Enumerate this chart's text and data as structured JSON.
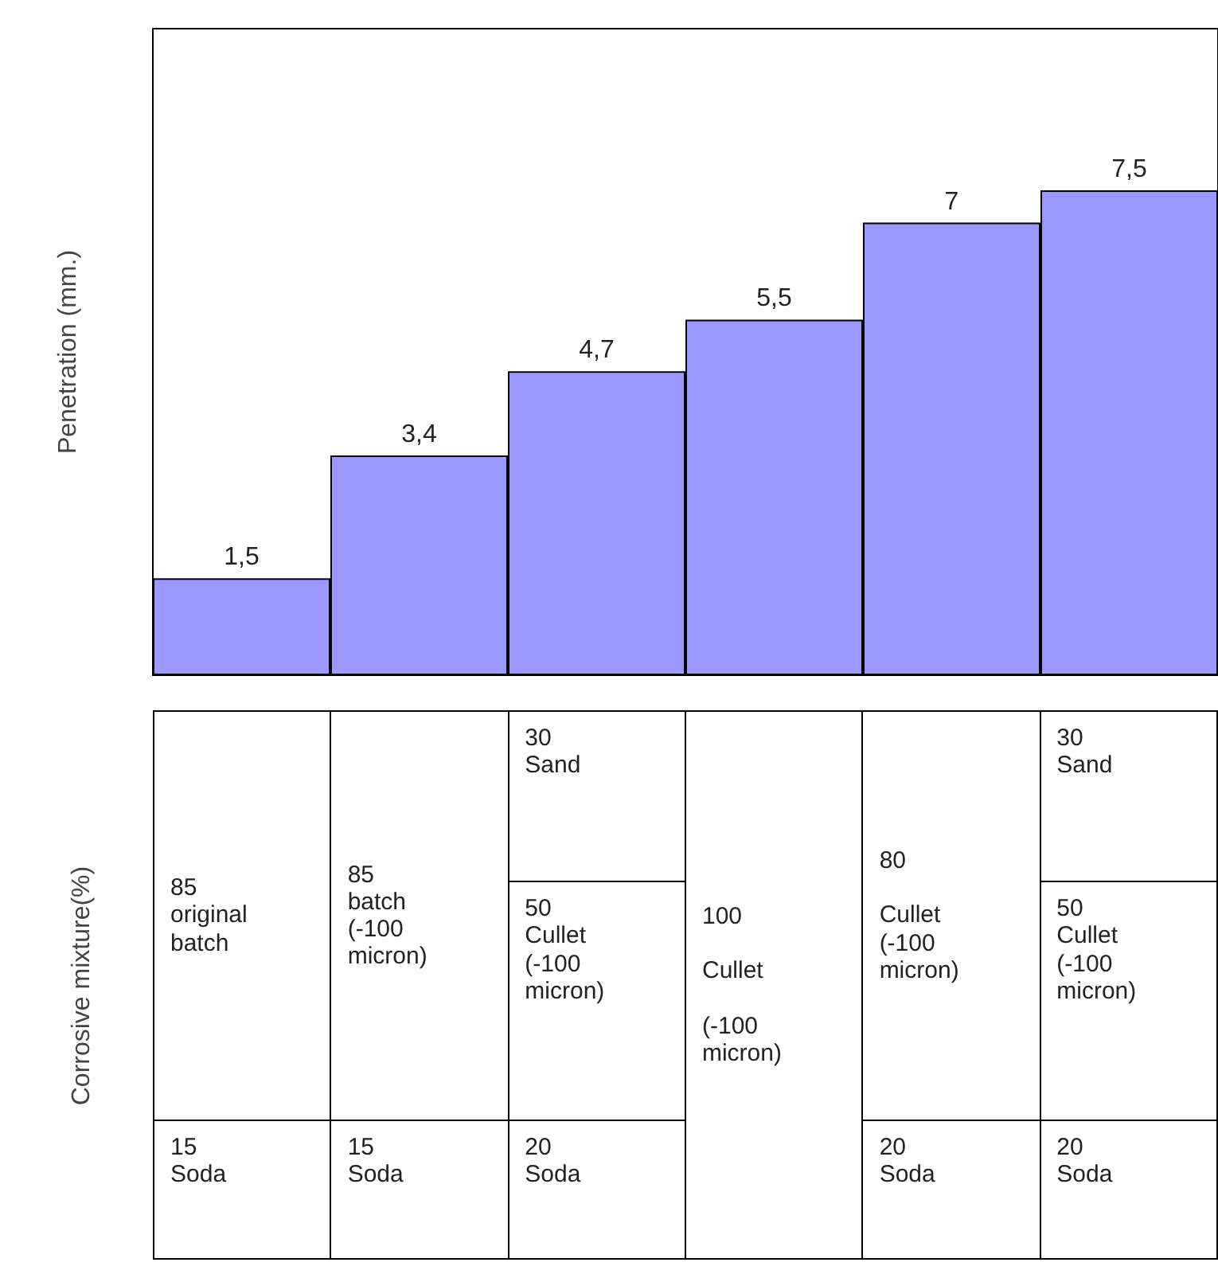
{
  "chart_data": [
    {
      "type": "bar",
      "ylabel": "Penetration (mm.)",
      "categories": [
        null,
        null,
        null,
        null,
        null,
        null
      ],
      "values": [
        1.5,
        3.4,
        4.7,
        5.5,
        7,
        7.5
      ],
      "value_labels": [
        "1,5",
        "3,4",
        "4,7",
        "5,5",
        "7",
        "7,5"
      ],
      "color": "#9999ff",
      "ylim": [
        0,
        10
      ]
    },
    {
      "type": "other",
      "ylabel": "Corrosive mixture(%)",
      "cell_labels": [
        [
          "85\noriginal\nbatch",
          "15\nSoda"
        ],
        [
          "85\nbatch\n(-100\nmicron)",
          "15\nSoda"
        ],
        [
          "30\nSand",
          "50\nCullet\n(-100\nmicron)",
          "20\nSoda"
        ],
        [
          "100\n\nCullet\n\n(-100\nmicron)"
        ],
        [
          "80\n\nCullet\n(-100\nmicron)",
          "20\nSoda"
        ],
        [
          "30\nSand",
          "50\nCullet\n(-100\nmicron)",
          "20\nSoda"
        ]
      ]
    }
  ]
}
